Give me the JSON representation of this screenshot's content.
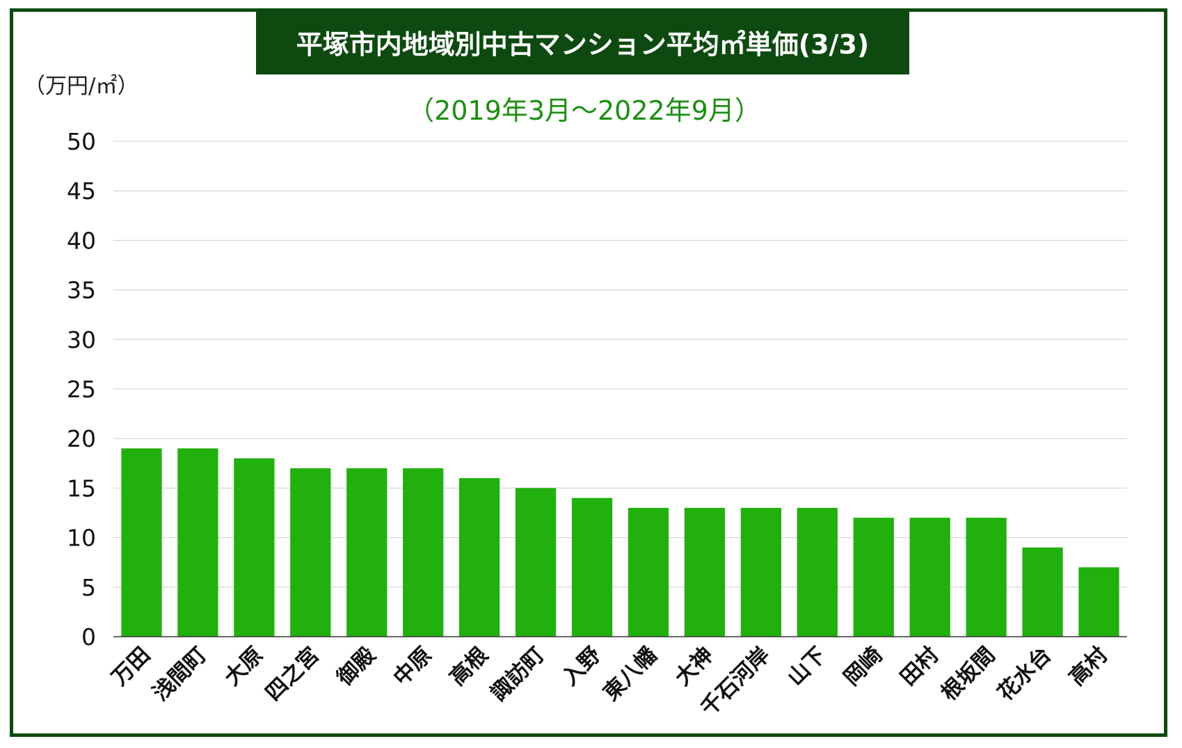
{
  "chart_data": {
    "type": "bar",
    "title": "平塚市内地域別中古マンション平均㎡単価(3/3)",
    "subtitle": "（2019年3月〜2022年9月）",
    "ylabel": "（万円/㎡）",
    "xlabel": "",
    "ylim": [
      0,
      50
    ],
    "yticks": [
      "0",
      "5",
      "10",
      "15",
      "20",
      "25",
      "30",
      "35",
      "40",
      "45",
      "50"
    ],
    "grid": true,
    "categories": [
      "万田",
      "浅間町",
      "大原",
      "四之宮",
      "御殿",
      "中原",
      "高根",
      "諏訪町",
      "入野",
      "東八幡",
      "大神",
      "千石河岸",
      "山下",
      "岡崎",
      "田村",
      "根坂間",
      "花水台",
      "高村"
    ],
    "values": [
      19,
      19,
      18,
      17,
      17,
      17,
      16,
      15,
      14,
      13,
      13,
      13,
      13,
      12,
      12,
      12,
      9,
      7
    ],
    "colors": {
      "bar": "#22b00e",
      "frame": "#0e4a10",
      "grid": "#cccccc",
      "subtitle": "#1d8e12"
    }
  }
}
